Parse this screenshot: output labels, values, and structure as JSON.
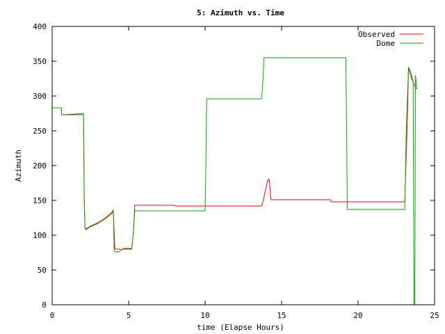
{
  "chart_data": {
    "type": "line",
    "title": "5: Azimuth vs. Time",
    "xlabel": "time (Elapse Hours)",
    "ylabel": "Azimuth",
    "xlim": [
      0,
      25
    ],
    "ylim": [
      0,
      400
    ],
    "xticks": [
      "0",
      "5",
      "10",
      "15",
      "20",
      "25"
    ],
    "yticks": [
      "0",
      "50",
      "100",
      "150",
      "200",
      "250",
      "300",
      "350",
      "400"
    ],
    "grid": false,
    "legend_position": "top-right",
    "series": [
      {
        "name": "Observed",
        "color": "#ff0000",
        "x": [
          0.0,
          0.6,
          0.62,
          1.5,
          2.0,
          2.05,
          2.1,
          2.15,
          2.2,
          2.5,
          3.0,
          3.5,
          3.9,
          4.0,
          4.05,
          4.1,
          4.4,
          4.5,
          4.7,
          5.2,
          5.3,
          5.4,
          5.45,
          7.0,
          8.0,
          8.05,
          9.0,
          10.0,
          10.05,
          11.0,
          12.0,
          13.0,
          13.7,
          13.8,
          14.1,
          14.2,
          14.3,
          16.0,
          18.0,
          18.2,
          18.25,
          19.0,
          20.0,
          22.0,
          23.0,
          23.05,
          23.2,
          23.3,
          23.5,
          23.8
        ],
        "y": [
          283,
          283,
          273,
          274,
          275,
          273,
          150,
          110,
          109,
          113,
          118,
          125,
          133,
          136,
          105,
          80,
          80,
          79,
          81,
          81,
          100,
          143,
          143,
          143,
          143,
          142,
          142,
          142,
          142,
          142,
          142,
          142,
          142,
          150,
          180,
          180,
          151,
          151,
          151,
          151,
          148,
          148,
          148,
          148,
          148,
          148,
          250,
          340,
          325,
          310
        ]
      },
      {
        "name": "Dome",
        "color": "#00aa00",
        "x": [
          0.0,
          0.6,
          0.62,
          1.9,
          2.0,
          2.05,
          2.1,
          2.15,
          2.2,
          2.5,
          3.0,
          3.5,
          3.9,
          4.0,
          4.05,
          4.1,
          4.4,
          4.5,
          4.7,
          5.2,
          5.3,
          5.4,
          5.45,
          7.0,
          9.0,
          10.0,
          10.05,
          10.1,
          11.0,
          12.0,
          13.0,
          13.7,
          13.8,
          13.85,
          15.0,
          17.0,
          19.0,
          19.2,
          19.25,
          19.3,
          20.0,
          22.0,
          23.0,
          23.05,
          23.15,
          23.3,
          23.5,
          23.6,
          23.65,
          23.7,
          23.72,
          23.75,
          23.8,
          23.85
        ],
        "y": [
          283,
          283,
          273,
          273,
          274,
          274,
          150,
          110,
          108,
          112,
          117,
          124,
          131,
          135,
          80,
          76,
          76,
          79,
          80,
          80,
          100,
          135,
          135,
          135,
          135,
          135,
          200,
          296,
          296,
          296,
          296,
          296,
          330,
          355,
          355,
          355,
          355,
          355,
          250,
          137,
          137,
          137,
          137,
          137,
          250,
          342,
          330,
          320,
          0,
          0,
          80,
          330,
          320,
          310
        ]
      }
    ]
  }
}
